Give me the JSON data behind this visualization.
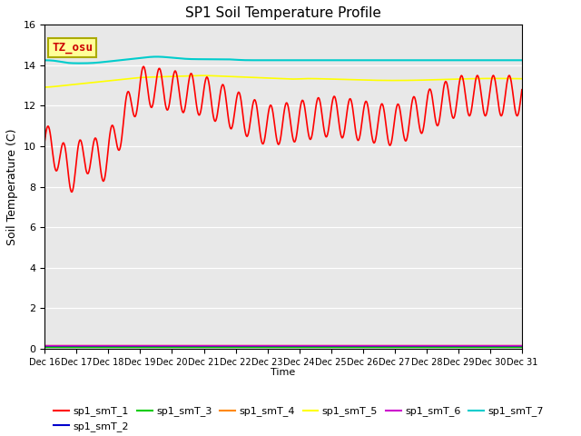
{
  "title": "SP1 Soil Temperature Profile",
  "ylabel": "Soil Temperature (C)",
  "xlabel": "Time",
  "ylim": [
    0,
    16
  ],
  "yticks": [
    0,
    2,
    4,
    6,
    8,
    10,
    12,
    14,
    16
  ],
  "background_color": "#e8e8e8",
  "annotation_text": "TZ_osu",
  "annotation_bgcolor": "#ffff99",
  "annotation_edgecolor": "#aaaa00",
  "annotation_textcolor": "#cc0000",
  "series_colors": {
    "sp1_smT_1": "#ff0000",
    "sp1_smT_2": "#0000cc",
    "sp1_smT_3": "#00cc00",
    "sp1_smT_4": "#ff8800",
    "sp1_smT_5": "#ffff00",
    "sp1_smT_6": "#cc00cc",
    "sp1_smT_7": "#00cccc"
  },
  "xtick_labels": [
    "Dec 16",
    "Dec 17",
    "Dec 18",
    "Dec 19",
    "Dec 20",
    "Dec 21",
    "Dec 22",
    "Dec 23",
    "Dec 24",
    "Dec 25",
    "Dec 26",
    "Dec 27",
    "Dec 28",
    "Dec 29",
    "Dec 30",
    "Dec 31"
  ],
  "num_days": 16,
  "figsize": [
    6.4,
    4.8
  ],
  "dpi": 100
}
